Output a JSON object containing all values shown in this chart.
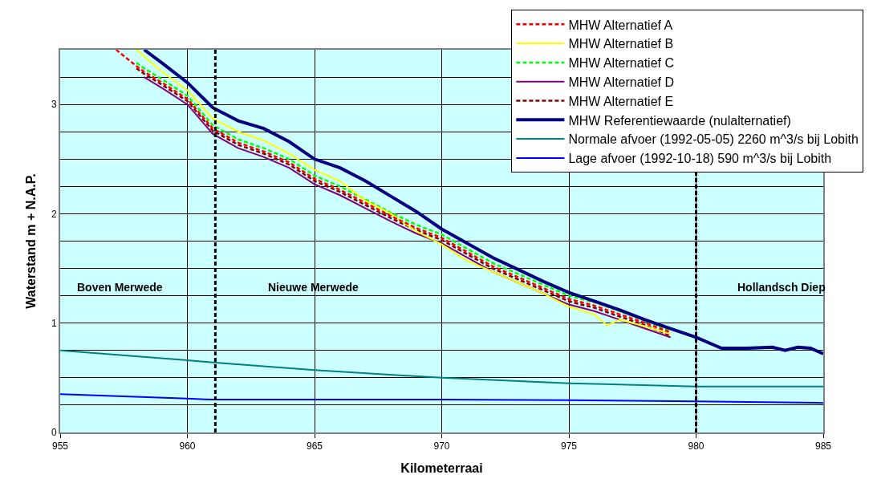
{
  "chart_data": {
    "type": "line",
    "xlabel": "Kilometerraai",
    "ylabel": "Waterstand m + N.A.P.",
    "x": [
      957.2,
      958,
      958.3,
      959,
      960,
      961,
      962,
      963,
      964,
      965,
      966,
      967,
      968,
      969,
      970,
      971,
      972,
      973,
      974,
      975,
      976,
      976.5,
      977,
      978,
      979,
      980,
      981,
      982,
      983,
      983.5,
      984,
      984.5,
      985
    ],
    "series": [
      {
        "name": "MHW Alternatief A",
        "color": "#ff0000",
        "line_style": "dashed",
        "values": [
          3.5,
          3.35,
          3.3,
          3.2,
          3.05,
          2.78,
          2.65,
          2.57,
          2.47,
          2.32,
          2.22,
          2.1,
          1.98,
          1.87,
          1.78,
          1.65,
          1.52,
          1.42,
          1.32,
          1.22,
          1.16,
          1.12,
          1.08,
          1.0,
          0.915,
          null,
          null,
          null,
          null,
          null,
          null,
          null,
          null
        ]
      },
      {
        "name": "MHW Alternatief B",
        "color": "#ffff00",
        "line_style": "solid",
        "values": [
          null,
          3.5,
          3.44,
          3.3,
          3.13,
          2.87,
          2.75,
          2.67,
          2.55,
          2.4,
          2.3,
          2.12,
          2.0,
          1.84,
          1.72,
          1.57,
          1.47,
          1.37,
          1.27,
          1.15,
          1.08,
          0.98,
          1.03,
          0.97,
          0.9,
          null,
          null,
          null,
          null,
          null,
          null,
          null,
          null
        ]
      },
      {
        "name": "MHW Alternatief C",
        "color": "#00ff00",
        "line_style": "dashed",
        "values": [
          null,
          3.38,
          3.33,
          3.23,
          3.08,
          2.81,
          2.68,
          2.6,
          2.5,
          2.35,
          2.25,
          2.13,
          2.01,
          1.9,
          1.81,
          1.68,
          1.55,
          1.45,
          1.35,
          1.25,
          1.19,
          1.15,
          1.11,
          1.02,
          0.93,
          null,
          null,
          null,
          null,
          null,
          null,
          null,
          null
        ]
      },
      {
        "name": "MHW Alternatief D",
        "color": "#800080",
        "line_style": "solid",
        "values": [
          null,
          null,
          3.25,
          3.15,
          3.0,
          2.73,
          2.6,
          2.52,
          2.42,
          2.27,
          2.17,
          2.05,
          1.93,
          1.82,
          1.73,
          1.6,
          1.47,
          1.37,
          1.27,
          1.17,
          1.11,
          1.07,
          1.03,
          0.95,
          0.87,
          null,
          null,
          null,
          null,
          null,
          null,
          null,
          null
        ]
      },
      {
        "name": "MHW Alternatief E",
        "color": "#800000",
        "line_style": "dashed",
        "values": [
          null,
          3.33,
          3.28,
          3.18,
          3.03,
          2.76,
          2.63,
          2.55,
          2.45,
          2.3,
          2.2,
          2.08,
          1.96,
          1.85,
          1.76,
          1.63,
          1.5,
          1.4,
          1.3,
          1.2,
          1.14,
          1.1,
          1.06,
          0.98,
          0.885,
          null,
          null,
          null,
          null,
          null,
          null,
          null,
          null
        ]
      },
      {
        "name": "MHW Referentiewaarde (nulalternatief)",
        "color": "#000080",
        "line_style": "solid",
        "values": [
          null,
          null,
          3.5,
          3.38,
          3.2,
          2.97,
          2.85,
          2.78,
          2.66,
          2.5,
          2.42,
          2.3,
          2.16,
          2.02,
          1.86,
          1.73,
          1.6,
          1.49,
          1.38,
          1.28,
          1.2,
          1.16,
          1.12,
          1.03,
          0.95,
          0.87,
          0.77,
          0.77,
          0.78,
          0.75,
          0.78,
          0.77,
          0.72
        ]
      },
      {
        "name": "Normale afvoer (1992-05-05) 2260 m^3/s bij Lobith",
        "color": "#008080",
        "line_style": "solid",
        "x": [
          955,
          960,
          961,
          965,
          970,
          975,
          980,
          985
        ],
        "values": [
          0.75,
          0.66,
          0.64,
          0.57,
          0.5,
          0.45,
          0.42,
          0.42
        ]
      },
      {
        "name": "Lage afvoer (1992-10-18) 590 m^3/s bij Lobith",
        "color": "#0000ff",
        "line_style": "solid",
        "x": [
          955,
          960,
          961,
          970,
          975,
          980,
          985
        ],
        "values": [
          0.35,
          0.31,
          0.3,
          0.3,
          0.295,
          0.285,
          0.27
        ]
      }
    ],
    "xlim": [
      955,
      985
    ],
    "xticks": [
      955,
      960,
      965,
      970,
      975,
      980,
      985
    ],
    "ylim": [
      0,
      3.5
    ],
    "yticks": [
      0,
      {
        "value": 0.25,
        "label": null
      },
      {
        "value": 0.5,
        "label": null
      },
      {
        "value": 0.75,
        "label": null
      },
      1,
      {
        "value": 1.25,
        "label": null
      },
      {
        "value": 1.5,
        "label": null
      },
      {
        "value": 1.75,
        "label": null
      },
      2,
      {
        "value": 2.25,
        "label": null
      },
      {
        "value": 2.5,
        "label": null
      },
      {
        "value": 2.75,
        "label": null
      },
      3,
      {
        "value": 3.25,
        "label": null
      }
    ],
    "ref_lines": [
      {
        "axis": "x",
        "value": 961.1,
        "color": "#000000",
        "line_style": "dashed"
      },
      {
        "axis": "x",
        "value": 980,
        "color": "#000000",
        "line_style": "dashed"
      }
    ],
    "annotations": [
      "Boven Merwede",
      "Nieuwe Merwede",
      "Hollandsch Diep"
    ],
    "grid": true,
    "legend": "top right",
    "marker": "none"
  }
}
